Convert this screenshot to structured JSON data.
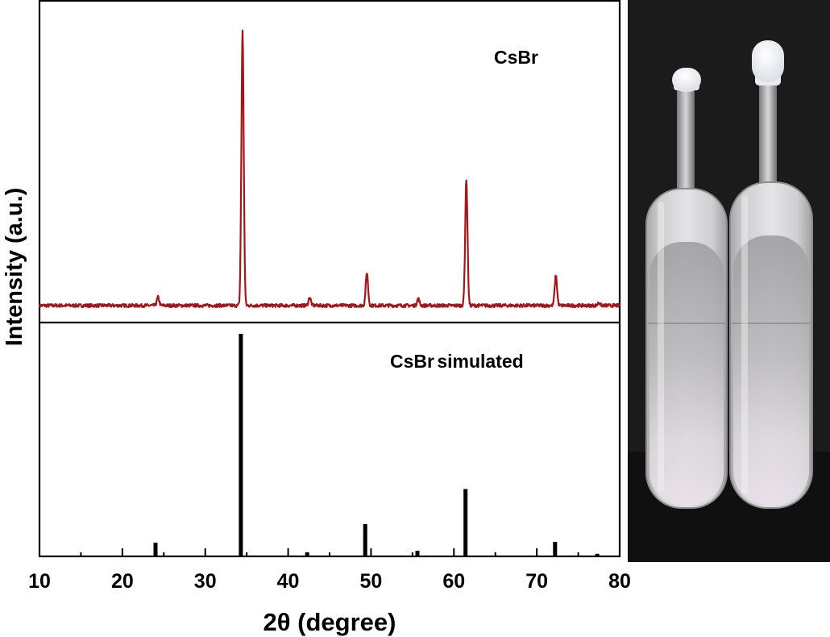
{
  "chart_data": {
    "type": "composite",
    "xlabel": "2θ (degree)",
    "ylabel": "Intensity (a.u.)",
    "xlim": [
      10,
      80
    ],
    "x_ticks": [
      10,
      20,
      30,
      40,
      50,
      60,
      70,
      80
    ],
    "panels": [
      {
        "type": "line",
        "label": "CsBr",
        "color": "#a3161a",
        "baseline": 0.012,
        "peaks": [
          {
            "x": 24.3,
            "y": 0.03
          },
          {
            "x": 34.5,
            "y": 1.0
          },
          {
            "x": 42.6,
            "y": 0.03
          },
          {
            "x": 49.5,
            "y": 0.12
          },
          {
            "x": 55.7,
            "y": 0.025
          },
          {
            "x": 61.5,
            "y": 0.46
          },
          {
            "x": 72.3,
            "y": 0.11
          },
          {
            "x": 77.5,
            "y": 0.01
          }
        ]
      },
      {
        "type": "bar",
        "label": "CsBr simulated",
        "color": "#000000",
        "x": [
          24.0,
          34.3,
          42.3,
          49.3,
          55.6,
          61.4,
          72.2,
          77.3
        ],
        "values": [
          0.058,
          1.0,
          0.015,
          0.142,
          0.022,
          0.3,
          0.062,
          0.008
        ]
      }
    ]
  },
  "photo": {
    "name": "two sealed glass ampoules containing white CsBr powder",
    "background_color": "#1a1a1a"
  }
}
